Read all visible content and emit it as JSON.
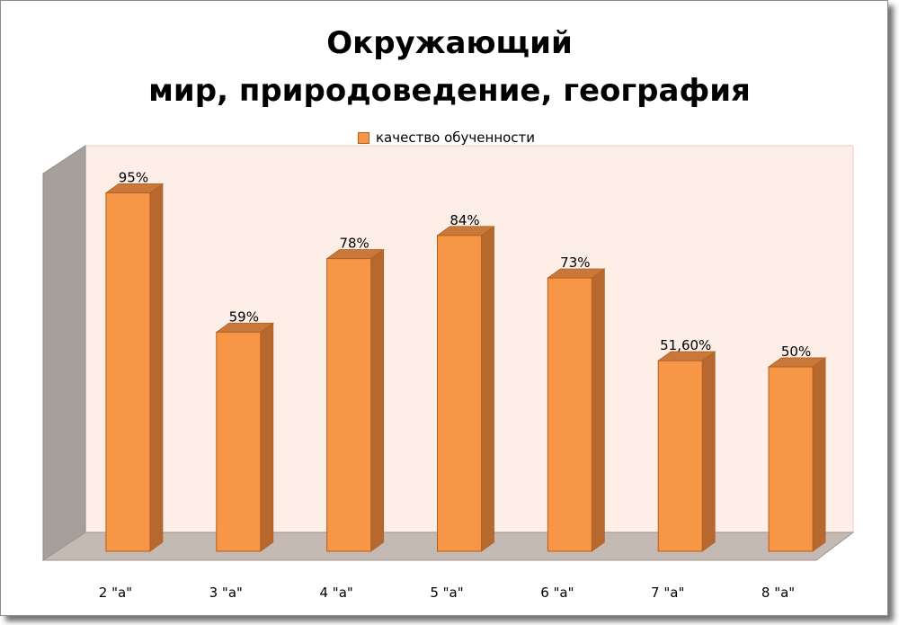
{
  "chart_data": {
    "type": "bar",
    "title_lines": [
      "Окружающий",
      "мир, природоведение, география"
    ],
    "categories": [
      "2 \"а\"",
      "3 \"а\"",
      "4 \"а\"",
      "5 \"а\"",
      "6 \"а\"",
      "7 \"а\"",
      "8 \"а\""
    ],
    "series": [
      {
        "name": "качество обученности",
        "values": [
          95,
          59,
          78,
          84,
          73,
          51.6,
          50
        ],
        "labels": [
          "95%",
          "59%",
          "78%",
          "84%",
          "73%",
          "51,60%",
          "50%"
        ]
      }
    ],
    "ylim": [
      0,
      100
    ],
    "legend_position": "top",
    "colors": {
      "bar_front": "#f79646",
      "bar_side": "#b7682f",
      "bar_top": "#c8783a",
      "bar_edge": "#b2601f",
      "back_wall": "#fdeee8",
      "side_wall": "#a6a09c",
      "floor": "#c5bab3"
    }
  }
}
